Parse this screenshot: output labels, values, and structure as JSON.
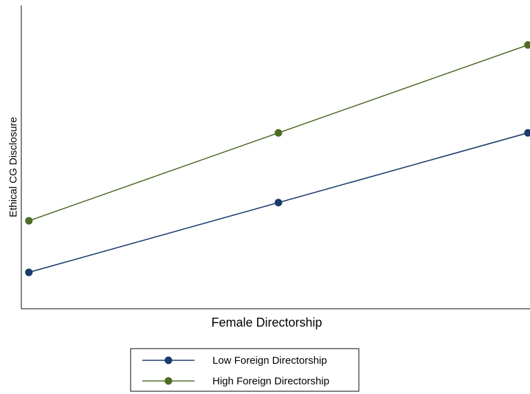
{
  "chart_data": {
    "type": "line",
    "xlabel": "Female Directorship",
    "ylabel": "Ethical CG Disclosure",
    "x": [
      0,
      1,
      2
    ],
    "xlim": [
      0,
      2
    ],
    "ylim": [
      0,
      1
    ],
    "grid": false,
    "legend_position": "bottom",
    "series": [
      {
        "name": "Low Foreign Directorship",
        "color": "#1a3a6b",
        "values": [
          0.12,
          0.35,
          0.58
        ]
      },
      {
        "name": "High Foreign Directorship",
        "color": "#4e6d26",
        "values": [
          0.29,
          0.58,
          0.87
        ]
      }
    ]
  }
}
